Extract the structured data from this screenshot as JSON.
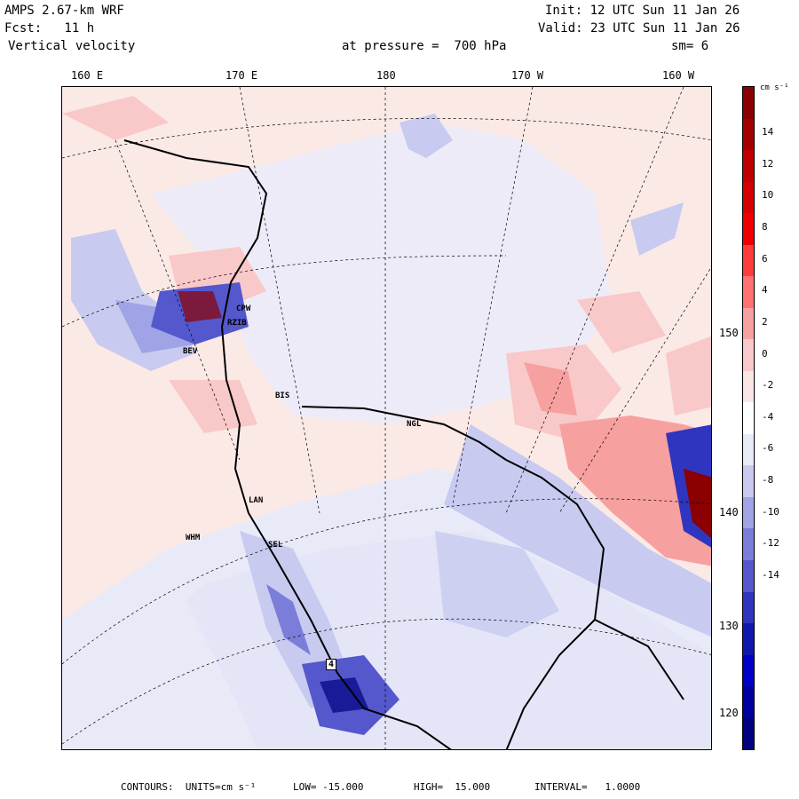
{
  "header": {
    "model": "AMPS 2.67-km WRF",
    "init": "Init: 12 UTC Sun 11 Jan 26",
    "fcst": "Fcst:   11 h",
    "valid": "Valid: 23 UTC Sun 11 Jan 26",
    "field": "Vertical velocity",
    "level": "at pressure =  700 hPa",
    "smooth": "sm= 6"
  },
  "longitude_labels": [
    "160 E",
    "170 E",
    "180",
    "170 W",
    "160 W"
  ],
  "latitude_labels": [
    "150 W",
    "140 W",
    "130 W",
    "120 W"
  ],
  "stations": [
    "CPW",
    "RZIB",
    "BEV",
    "BIS",
    "NGL",
    "LAN",
    "WHM",
    "SEL"
  ],
  "map_marker": "4",
  "colorbar": {
    "units_label": "cm s⁻¹",
    "ticks": [
      "14",
      "12",
      "10",
      "8",
      "6",
      "4",
      "2",
      "0",
      "-2",
      "-4",
      "-6",
      "-8",
      "-10",
      "-12",
      "-14"
    ],
    "colors": [
      "#8b0000",
      "#a50000",
      "#c00000",
      "#d60000",
      "#ef0000",
      "#ff3c3c",
      "#ff7070",
      "#f7a0a0",
      "#f9c8c8",
      "#fbe6e6",
      "#ffffff",
      "#e8eaf8",
      "#c8caf0",
      "#a0a4e6",
      "#7a7ed9",
      "#5458cc",
      "#3035bf",
      "#1018b0",
      "#0000c8",
      "#0000a0",
      "#000080"
    ]
  },
  "footer": {
    "contours": "CONTOURS:  UNITS=cm s⁻¹",
    "low": "LOW= -15.000",
    "high": "HIGH=  15.000",
    "interval": "INTERVAL=   1.0000"
  }
}
